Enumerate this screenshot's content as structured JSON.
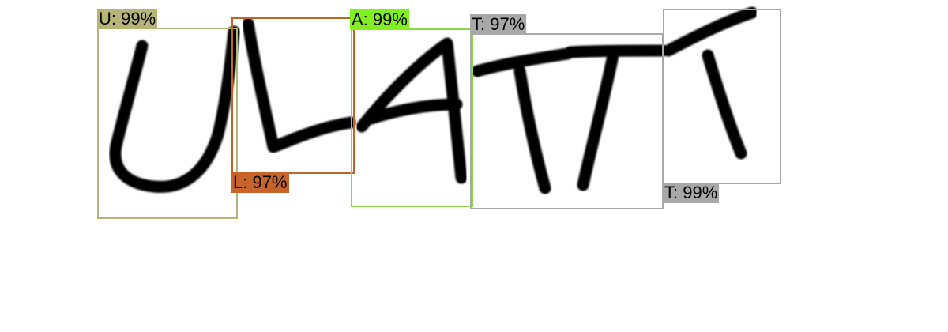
{
  "detections": [
    {
      "label": "U: 99%",
      "color": "#b8b478"
    },
    {
      "label": "L: 97%",
      "color": "#c0642a"
    },
    {
      "label": "A: 99%",
      "color": "#8cd846"
    },
    {
      "label": "T: 97%",
      "color": "#a8a8a8"
    },
    {
      "label": "T: 99%",
      "color": "#a8a8a8"
    }
  ],
  "detection_label_fills": {
    "u": "#b8b478",
    "l": "#c8642a",
    "a": "#80f020",
    "t1": "#a8a8a8",
    "t2": "#a8a8a8"
  }
}
